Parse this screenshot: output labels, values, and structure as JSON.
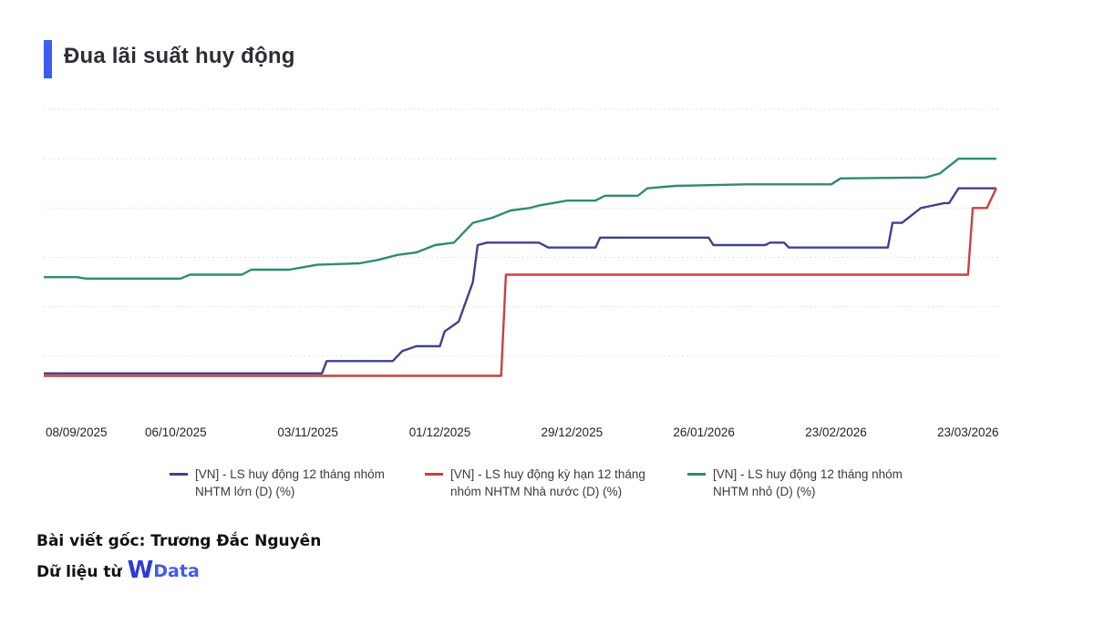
{
  "title": "Đua lãi suất huy động",
  "footer": {
    "author_line": "Bài viết gốc: Trương Đắc Nguyên",
    "source_prefix": "Dữ liệu từ",
    "brand_w": "W",
    "brand_rest": "Data"
  },
  "colors": {
    "title_accent": "#3d5cf0",
    "large": "#3f418f",
    "state": "#c9413d",
    "small": "#2f8a72",
    "grid": "#e3e3e3"
  },
  "chart_data": {
    "type": "line",
    "title": "Đua lãi suất huy động",
    "x_tick_labels": [
      "08/09/2025",
      "06/10/2025",
      "03/11/2025",
      "01/12/2025",
      "29/12/2025",
      "26/01/2026",
      "23/02/2026",
      "23/03/2026"
    ],
    "x_range": [
      "2025-09-08",
      "2026-03-30"
    ],
    "y_range": [
      0,
      6
    ],
    "y_tick_labels_shown": false,
    "grid": "horizontal dotted",
    "legend_position": "bottom",
    "series": [
      {
        "name": "[VN] - LS huy động 12 tháng nhóm NHTM lớn (D) (%)",
        "color": "#3f418f",
        "points": [
          [
            "2025-09-08",
            0.65
          ],
          [
            "2025-11-06",
            0.65
          ],
          [
            "2025-11-07",
            0.9
          ],
          [
            "2025-11-21",
            0.9
          ],
          [
            "2025-11-23",
            1.1
          ],
          [
            "2025-11-26",
            1.2
          ],
          [
            "2025-12-01",
            1.2
          ],
          [
            "2025-12-02",
            1.5
          ],
          [
            "2025-12-05",
            1.7
          ],
          [
            "2025-12-08",
            2.5
          ],
          [
            "2025-12-09",
            3.25
          ],
          [
            "2025-12-11",
            3.3
          ],
          [
            "2025-12-22",
            3.3
          ],
          [
            "2025-12-24",
            3.2
          ],
          [
            "2026-01-03",
            3.2
          ],
          [
            "2026-01-04",
            3.4
          ],
          [
            "2026-01-27",
            3.4
          ],
          [
            "2026-01-28",
            3.25
          ],
          [
            "2026-02-08",
            3.25
          ],
          [
            "2026-02-09",
            3.3
          ],
          [
            "2026-02-12",
            3.3
          ],
          [
            "2026-02-13",
            3.2
          ],
          [
            "2026-03-06",
            3.2
          ],
          [
            "2026-03-07",
            3.7
          ],
          [
            "2026-03-09",
            3.7
          ],
          [
            "2026-03-13",
            4.0
          ],
          [
            "2026-03-18",
            4.1
          ],
          [
            "2026-03-19",
            4.1
          ],
          [
            "2026-03-21",
            4.4
          ],
          [
            "2026-03-29",
            4.4
          ]
        ]
      },
      {
        "name": "[VN] - LS huy động kỳ hạn 12 tháng nhóm NHTM Nhà nước (D) (%)",
        "color": "#c9413d",
        "points": [
          [
            "2025-09-08",
            0.6
          ],
          [
            "2025-12-14",
            0.6
          ],
          [
            "2025-12-15",
            2.65
          ],
          [
            "2026-03-23",
            2.65
          ],
          [
            "2026-03-24",
            4.0
          ],
          [
            "2026-03-27",
            4.0
          ],
          [
            "2026-03-29",
            4.4
          ]
        ]
      },
      {
        "name": "[VN] - LS huy động 12 tháng nhóm NHTM nhỏ (D) (%)",
        "color": "#2f8a72",
        "points": [
          [
            "2025-09-08",
            2.6
          ],
          [
            "2025-09-15",
            2.6
          ],
          [
            "2025-09-17",
            2.57
          ],
          [
            "2025-10-07",
            2.57
          ],
          [
            "2025-10-09",
            2.65
          ],
          [
            "2025-10-20",
            2.65
          ],
          [
            "2025-10-22",
            2.75
          ],
          [
            "2025-10-30",
            2.75
          ],
          [
            "2025-11-02",
            2.8
          ],
          [
            "2025-11-05",
            2.85
          ],
          [
            "2025-11-14",
            2.88
          ],
          [
            "2025-11-18",
            2.95
          ],
          [
            "2025-11-22",
            3.05
          ],
          [
            "2025-11-26",
            3.1
          ],
          [
            "2025-11-30",
            3.25
          ],
          [
            "2025-12-04",
            3.3
          ],
          [
            "2025-12-06",
            3.5
          ],
          [
            "2025-12-08",
            3.7
          ],
          [
            "2025-12-12",
            3.8
          ],
          [
            "2025-12-16",
            3.95
          ],
          [
            "2025-12-20",
            4.0
          ],
          [
            "2025-12-22",
            4.05
          ],
          [
            "2025-12-28",
            4.15
          ],
          [
            "2026-01-03",
            4.15
          ],
          [
            "2026-01-05",
            4.25
          ],
          [
            "2026-01-12",
            4.25
          ],
          [
            "2026-01-14",
            4.4
          ],
          [
            "2026-01-20",
            4.45
          ],
          [
            "2026-02-04",
            4.48
          ],
          [
            "2026-02-22",
            4.48
          ],
          [
            "2026-02-24",
            4.6
          ],
          [
            "2026-03-14",
            4.62
          ],
          [
            "2026-03-17",
            4.7
          ],
          [
            "2026-03-19",
            4.85
          ],
          [
            "2026-03-21",
            5.0
          ],
          [
            "2026-03-29",
            5.0
          ]
        ]
      }
    ]
  }
}
